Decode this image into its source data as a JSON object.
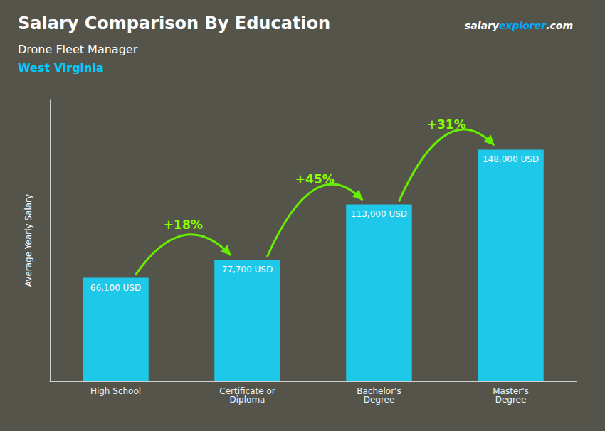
{
  "chart_data": {
    "type": "bar",
    "title": "Salary Comparison By Education",
    "subtitle": "Drone Fleet Manager",
    "annotations": [
      {
        "text": "West Virginia",
        "color": "#00ccff"
      }
    ],
    "brand": [
      {
        "text": "salary",
        "color": "#ffffff"
      },
      {
        "text": "explorer",
        "color": "#00aaff"
      },
      {
        "text": ".com",
        "color": "#ffffff"
      }
    ],
    "ylabel": "Average Yearly Salary",
    "categories": [
      "High School",
      "Certificate or\nDiploma",
      "Bachelor's\nDegree",
      "Master's\nDegree"
    ],
    "values": [
      66100,
      77700,
      113000,
      148000
    ],
    "value_labels": [
      "66,100 USD",
      "77,700 USD",
      "113,000 USD",
      "148,000 USD"
    ],
    "data_labels": true,
    "pct_labels": [
      "+18%",
      "+45%",
      "+31%"
    ],
    "pct_color": "#88ff00",
    "arrow_color": "#66ee00",
    "color": "#1ec8e8",
    "ylim": [
      0,
      180000
    ],
    "tick_labels": false,
    "grid": false
  }
}
